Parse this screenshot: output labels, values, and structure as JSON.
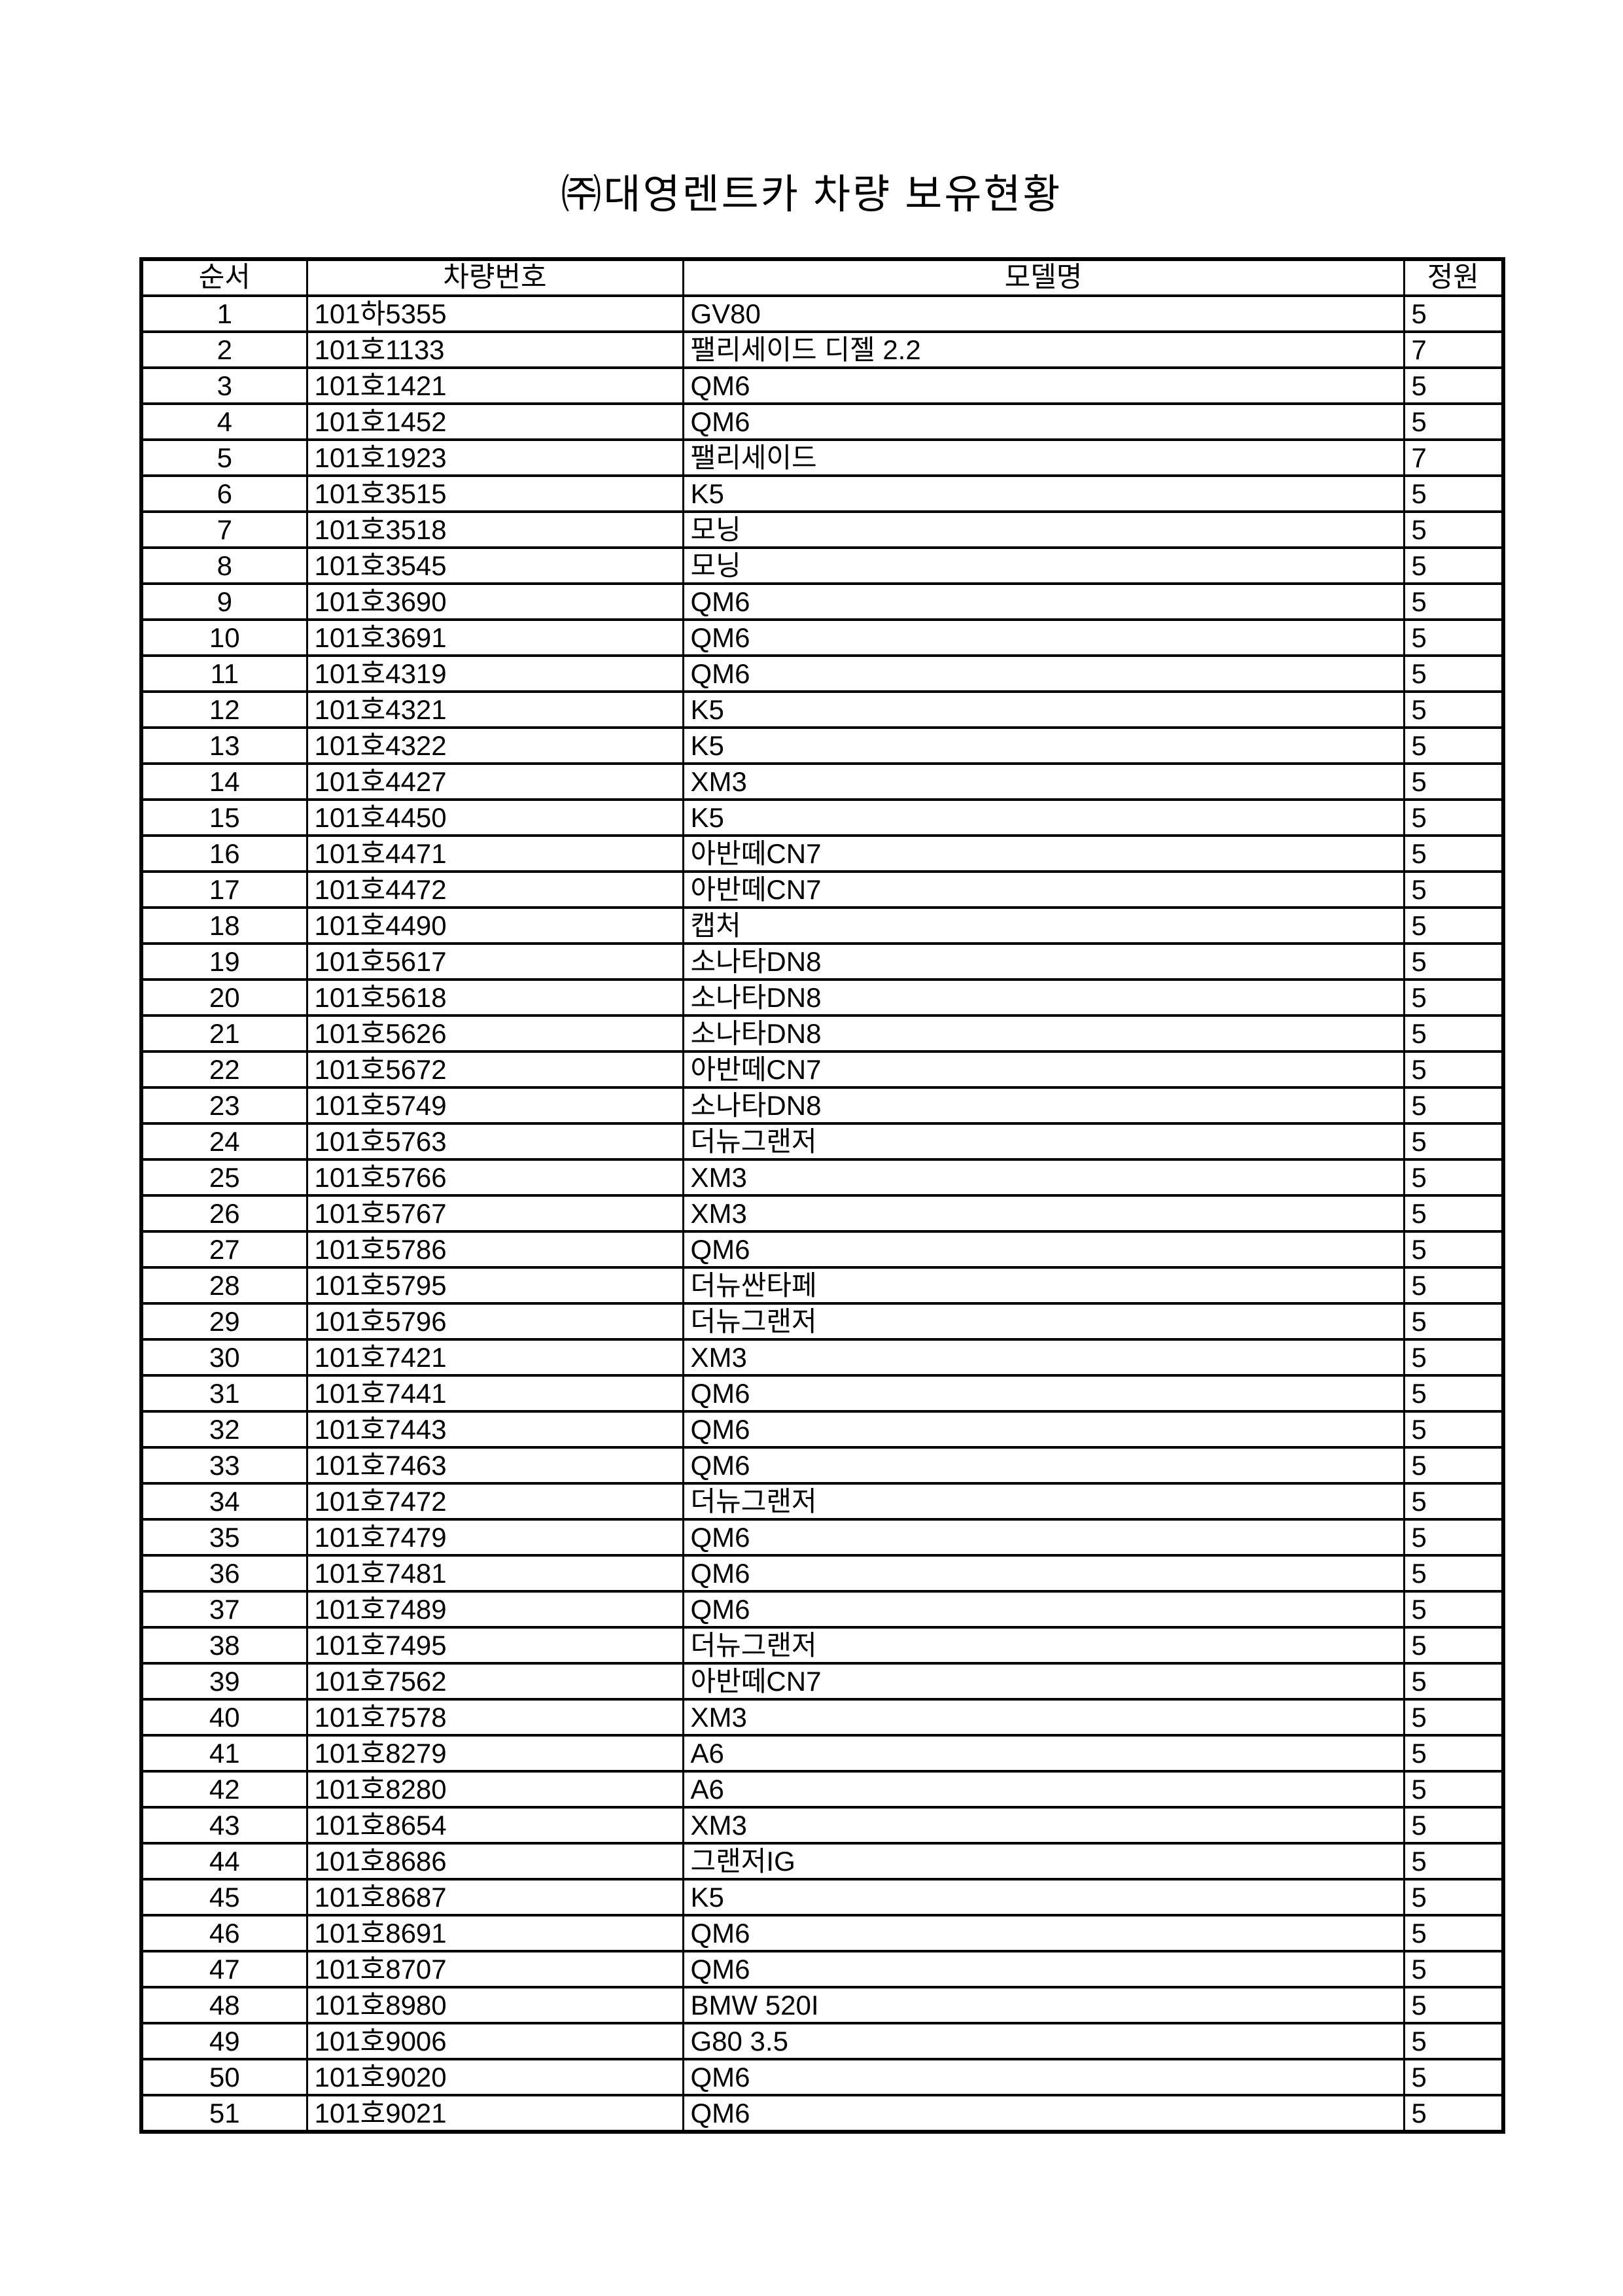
{
  "page": {
    "title": "㈜대영렌트카 차량 보유현황"
  },
  "table": {
    "headers": [
      "순서",
      "차량번호",
      "모델명",
      "정원"
    ],
    "rows": [
      [
        "1",
        "101하5355",
        "GV80",
        "5"
      ],
      [
        "2",
        "101호1133",
        "팰리세이드 디젤 2.2",
        "7"
      ],
      [
        "3",
        "101호1421",
        "QM6",
        "5"
      ],
      [
        "4",
        "101호1452",
        "QM6",
        "5"
      ],
      [
        "5",
        "101호1923",
        "팰리세이드",
        "7"
      ],
      [
        "6",
        "101호3515",
        "K5",
        "5"
      ],
      [
        "7",
        "101호3518",
        "모닝",
        "5"
      ],
      [
        "8",
        "101호3545",
        "모닝",
        "5"
      ],
      [
        "9",
        "101호3690",
        "QM6",
        "5"
      ],
      [
        "10",
        "101호3691",
        "QM6",
        "5"
      ],
      [
        "11",
        "101호4319",
        "QM6",
        "5"
      ],
      [
        "12",
        "101호4321",
        "K5",
        "5"
      ],
      [
        "13",
        "101호4322",
        "K5",
        "5"
      ],
      [
        "14",
        "101호4427",
        "XM3",
        "5"
      ],
      [
        "15",
        "101호4450",
        "K5",
        "5"
      ],
      [
        "16",
        "101호4471",
        "아반떼CN7",
        "5"
      ],
      [
        "17",
        "101호4472",
        "아반떼CN7",
        "5"
      ],
      [
        "18",
        "101호4490",
        "캡처",
        "5"
      ],
      [
        "19",
        "101호5617",
        "소나타DN8",
        "5"
      ],
      [
        "20",
        "101호5618",
        "소나타DN8",
        "5"
      ],
      [
        "21",
        "101호5626",
        "소나타DN8",
        "5"
      ],
      [
        "22",
        "101호5672",
        "아반떼CN7",
        "5"
      ],
      [
        "23",
        "101호5749",
        "소나타DN8",
        "5"
      ],
      [
        "24",
        "101호5763",
        "더뉴그랜저",
        "5"
      ],
      [
        "25",
        "101호5766",
        "XM3",
        "5"
      ],
      [
        "26",
        "101호5767",
        "XM3",
        "5"
      ],
      [
        "27",
        "101호5786",
        "QM6",
        "5"
      ],
      [
        "28",
        "101호5795",
        "더뉴싼타페",
        "5"
      ],
      [
        "29",
        "101호5796",
        "더뉴그랜저",
        "5"
      ],
      [
        "30",
        "101호7421",
        "XM3",
        "5"
      ],
      [
        "31",
        "101호7441",
        "QM6",
        "5"
      ],
      [
        "32",
        "101호7443",
        "QM6",
        "5"
      ],
      [
        "33",
        "101호7463",
        "QM6",
        "5"
      ],
      [
        "34",
        "101호7472",
        "더뉴그랜저",
        "5"
      ],
      [
        "35",
        "101호7479",
        "QM6",
        "5"
      ],
      [
        "36",
        "101호7481",
        "QM6",
        "5"
      ],
      [
        "37",
        "101호7489",
        "QM6",
        "5"
      ],
      [
        "38",
        "101호7495",
        "더뉴그랜저",
        "5"
      ],
      [
        "39",
        "101호7562",
        "아반떼CN7",
        "5"
      ],
      [
        "40",
        "101호7578",
        "XM3",
        "5"
      ],
      [
        "41",
        "101호8279",
        "A6",
        "5"
      ],
      [
        "42",
        "101호8280",
        "A6",
        "5"
      ],
      [
        "43",
        "101호8654",
        "XM3",
        "5"
      ],
      [
        "44",
        "101호8686",
        "그랜저IG",
        "5"
      ],
      [
        "45",
        "101호8687",
        "K5",
        "5"
      ],
      [
        "46",
        "101호8691",
        "QM6",
        "5"
      ],
      [
        "47",
        "101호8707",
        "QM6",
        "5"
      ],
      [
        "48",
        "101호8980",
        "BMW 520I",
        "5"
      ],
      [
        "49",
        "101호9006",
        "G80 3.5",
        "5"
      ],
      [
        "50",
        "101호9020",
        "QM6",
        "5"
      ],
      [
        "51",
        "101호9021",
        "QM6",
        "5"
      ]
    ]
  }
}
